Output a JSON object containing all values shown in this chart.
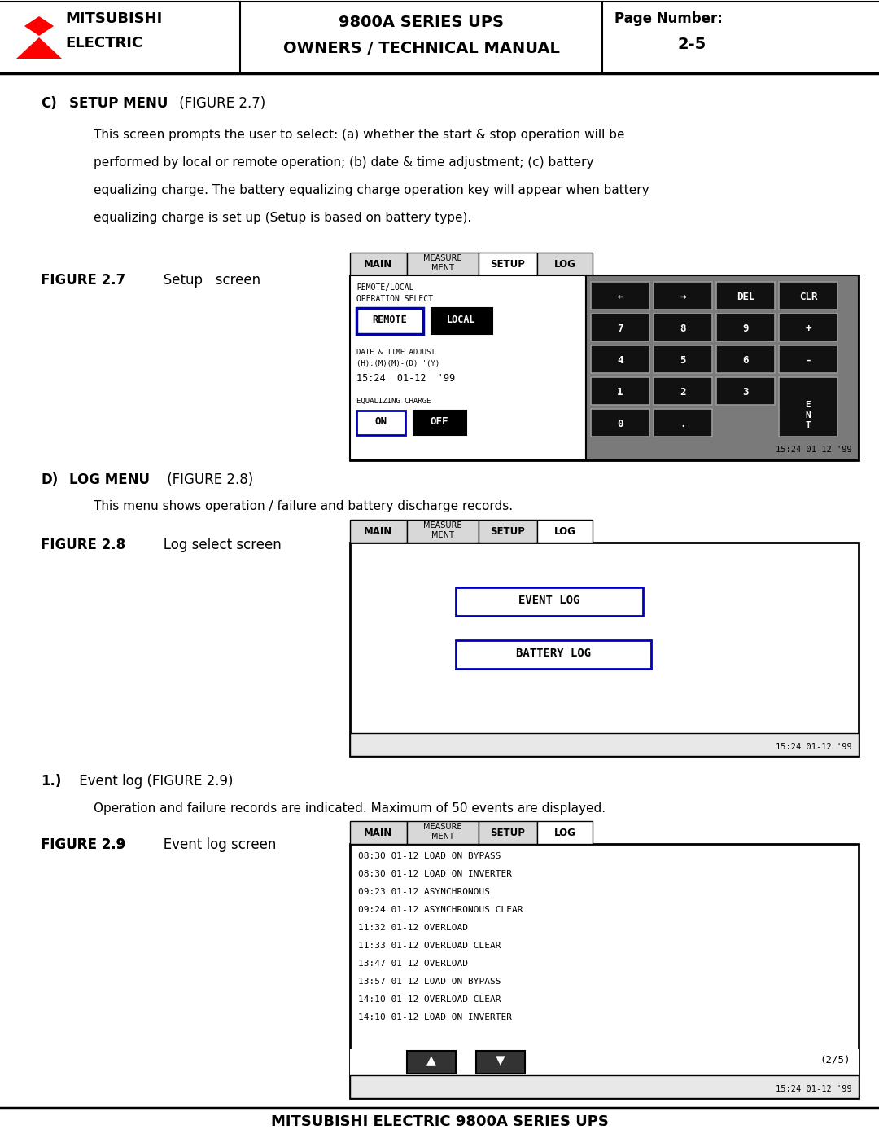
{
  "fig_w": 10.8,
  "fig_h": 13.97,
  "dpi": 100,
  "bg_color": "#ffffff",
  "header": {
    "title1": "9800A SERIES UPS",
    "title2": "OWNERS / TECHNICAL MANUAL",
    "page_label": "Page Number:",
    "page_num": "2-5",
    "brand1": "MITSUBISHI",
    "brand2": "ELECTRIC"
  },
  "footer_text": "MITSUBISHI ELECTRIC 9800A SERIES UPS",
  "sec_c": {
    "label": "C)",
    "title_bold": "SETUP MENU",
    "title_normal": " (FIGURE 2.7)",
    "body": "This screen prompts the user to select: (a) whether the start & stop operation will be\nperformed by local or remote operation; (b) date & time adjustment; (c) battery\nequalizing charge. The battery equalizing charge operation key will appear when battery\nequalizing charge is set up (Setup is based on battery type).",
    "fig_label_bold": "FIGURE 2.7",
    "fig_label_normal": "   Setup   screen"
  },
  "sec_d": {
    "label": "D)",
    "title_bold": "LOG MENU",
    "title_normal": " (FIGURE 2.8)",
    "body": "This menu shows operation / failure and battery discharge records.",
    "fig_label_bold": "FIGURE 2.8",
    "fig_label_normal": "   Log select screen"
  },
  "sec_1": {
    "label": "1.)",
    "title_normal": " Event log (FIGURE 2.9)",
    "body": "Operation and failure records are indicated. Maximum of 50 events are displayed.",
    "fig_label_bold": "FIGURE 2.9",
    "fig_label_normal": "   Event log screen"
  },
  "screen_tabs": [
    "MAIN",
    "MEASURE\nMENT",
    "SETUP",
    "LOG"
  ],
  "events": [
    "08:30 01-12 LOAD ON BYPASS",
    "08:30 01-12 LOAD ON INVERTER",
    "09:23 01-12 ASYNCHRONOUS",
    "09:24 01-12 ASYNCHRONOUS CLEAR",
    "11:32 01-12 OVERLOAD",
    "11:33 01-12 OVERLOAD CLEAR",
    "13:47 01-12 OVERLOAD",
    "13:57 01-12 LOAD ON BYPASS",
    "14:10 01-12 OVERLOAD CLEAR",
    "14:10 01-12 LOAD ON INVERTER"
  ],
  "timestamp": "15:24 01-12 ’99"
}
